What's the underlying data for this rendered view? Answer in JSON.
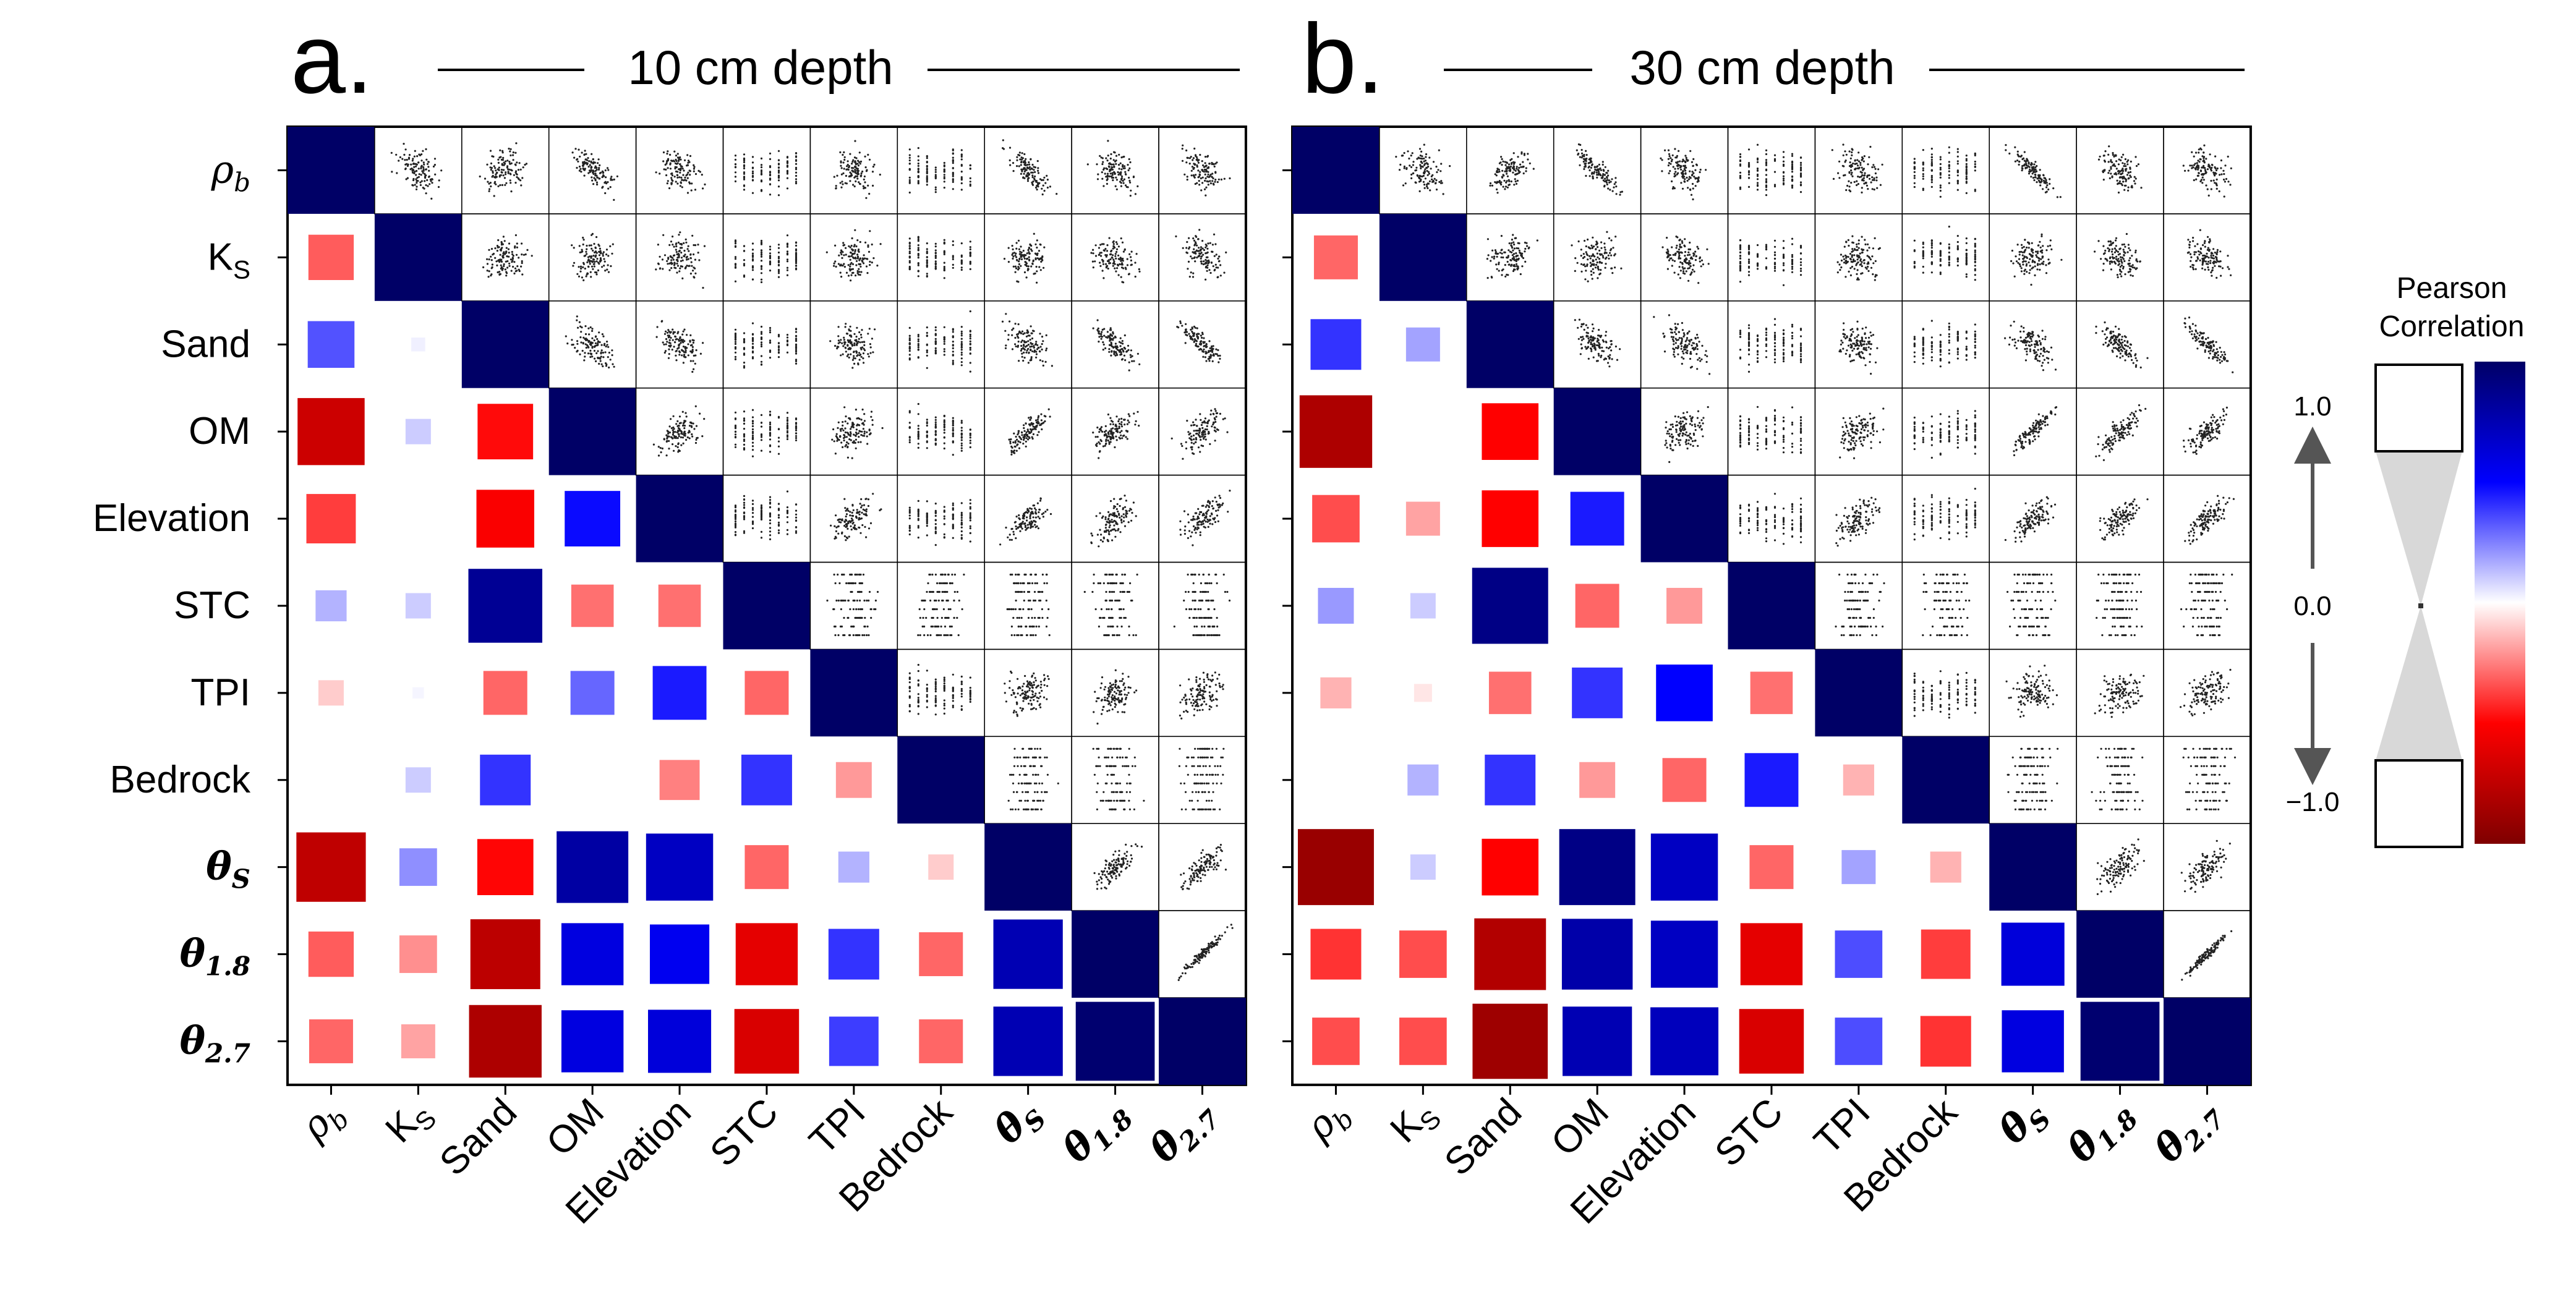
{
  "panels": [
    {
      "letter": "a.",
      "title": "10 cm depth"
    },
    {
      "letter": "b.",
      "title": "30 cm depth"
    }
  ],
  "legend": {
    "title_line1": "Pearson",
    "title_line2": "Correlation",
    "tick_top": "1.0",
    "tick_mid": "0.0",
    "tick_bottom": "−1.0",
    "colormap": "seismic_r",
    "colors": {
      "pos_max": "#000066",
      "pos_mid": "#0000ff",
      "zero": "#ffffff",
      "neg_mid": "#ff0000",
      "neg_max": "#7f0000"
    }
  },
  "chart_data": [
    {
      "type": "heatmap",
      "title": "10 cm depth",
      "variables": [
        "ρb",
        "KS",
        "Sand",
        "OM",
        "Elevation",
        "STC",
        "TPI",
        "Bedrock",
        "θS",
        "θ1.8",
        "θ2.7"
      ],
      "upper_triangle": "scatter",
      "lower_triangle": "correlation squares (size and color = Pearson r)",
      "correlations": [
        [
          1.0,
          -0.32,
          0.34,
          -0.7,
          -0.38,
          0.15,
          -0.1,
          0.0,
          -0.75,
          -0.32,
          -0.3
        ],
        [
          -0.32,
          1.0,
          0.03,
          0.1,
          0.0,
          0.1,
          0.02,
          0.1,
          0.22,
          -0.22,
          -0.18
        ],
        [
          0.34,
          0.03,
          1.0,
          -0.48,
          -0.52,
          0.85,
          -0.3,
          0.4,
          -0.49,
          -0.76,
          -0.82
        ],
        [
          -0.7,
          0.1,
          -0.48,
          1.0,
          0.48,
          -0.28,
          0.3,
          0.0,
          0.8,
          0.6,
          0.6
        ],
        [
          -0.38,
          0.0,
          -0.52,
          0.48,
          1.0,
          -0.28,
          0.45,
          -0.25,
          0.7,
          0.55,
          0.62
        ],
        [
          0.15,
          0.1,
          0.85,
          -0.28,
          -0.28,
          1.0,
          -0.3,
          0.4,
          -0.3,
          -0.6,
          -0.65
        ],
        [
          -0.1,
          0.02,
          -0.3,
          0.3,
          0.45,
          -0.3,
          1.0,
          -0.2,
          0.15,
          0.4,
          0.38
        ],
        [
          0.0,
          0.1,
          0.4,
          0.0,
          -0.25,
          0.4,
          -0.2,
          1.0,
          -0.1,
          -0.3,
          -0.3
        ],
        [
          -0.75,
          0.22,
          -0.49,
          0.8,
          0.7,
          -0.3,
          0.15,
          -0.1,
          1.0,
          0.75,
          0.75
        ],
        [
          -0.32,
          -0.22,
          -0.76,
          0.6,
          0.55,
          -0.6,
          0.4,
          -0.3,
          0.75,
          1.0,
          0.97
        ],
        [
          -0.3,
          -0.18,
          -0.82,
          0.6,
          0.62,
          -0.65,
          0.38,
          -0.3,
          0.75,
          0.97,
          1.0
        ]
      ]
    },
    {
      "type": "heatmap",
      "title": "30 cm depth",
      "variables": [
        "ρb",
        "KS",
        "Sand",
        "OM",
        "Elevation",
        "STC",
        "TPI",
        "Bedrock",
        "θS",
        "θ1.8",
        "θ2.7"
      ],
      "upper_triangle": "scatter",
      "lower_triangle": "correlation squares (size and color = Pearson r)",
      "correlations": [
        [
          1.0,
          -0.3,
          0.4,
          -0.82,
          -0.35,
          0.2,
          -0.15,
          0.0,
          -0.9,
          -0.4,
          -0.35
        ],
        [
          -0.3,
          1.0,
          0.18,
          0.0,
          -0.18,
          0.1,
          -0.05,
          0.15,
          0.1,
          -0.35,
          -0.35
        ],
        [
          0.4,
          0.18,
          1.0,
          -0.5,
          -0.5,
          0.9,
          -0.28,
          0.4,
          -0.5,
          -0.8,
          -0.88
        ],
        [
          -0.82,
          0.0,
          -0.5,
          1.0,
          0.45,
          -0.3,
          0.4,
          -0.2,
          0.9,
          0.78,
          0.75
        ],
        [
          -0.35,
          -0.18,
          -0.5,
          0.45,
          1.0,
          -0.2,
          0.5,
          -0.3,
          0.7,
          0.7,
          0.72
        ],
        [
          0.2,
          0.1,
          0.9,
          -0.3,
          -0.2,
          1.0,
          -0.28,
          0.45,
          -0.3,
          -0.6,
          -0.65
        ],
        [
          -0.15,
          -0.05,
          -0.28,
          0.4,
          0.5,
          -0.28,
          1.0,
          -0.15,
          0.18,
          0.35,
          0.35
        ],
        [
          0.0,
          0.15,
          0.4,
          -0.2,
          -0.3,
          0.45,
          -0.15,
          1.0,
          -0.15,
          -0.38,
          -0.4
        ],
        [
          -0.9,
          0.1,
          -0.5,
          0.9,
          0.7,
          -0.3,
          0.18,
          -0.15,
          1.0,
          0.62,
          0.6
        ],
        [
          -0.4,
          -0.35,
          -0.8,
          0.78,
          0.7,
          -0.6,
          0.35,
          -0.38,
          0.62,
          1.0,
          0.97
        ],
        [
          -0.35,
          -0.35,
          -0.88,
          0.75,
          0.72,
          -0.65,
          0.35,
          -0.4,
          0.6,
          0.97,
          1.0
        ]
      ]
    }
  ]
}
